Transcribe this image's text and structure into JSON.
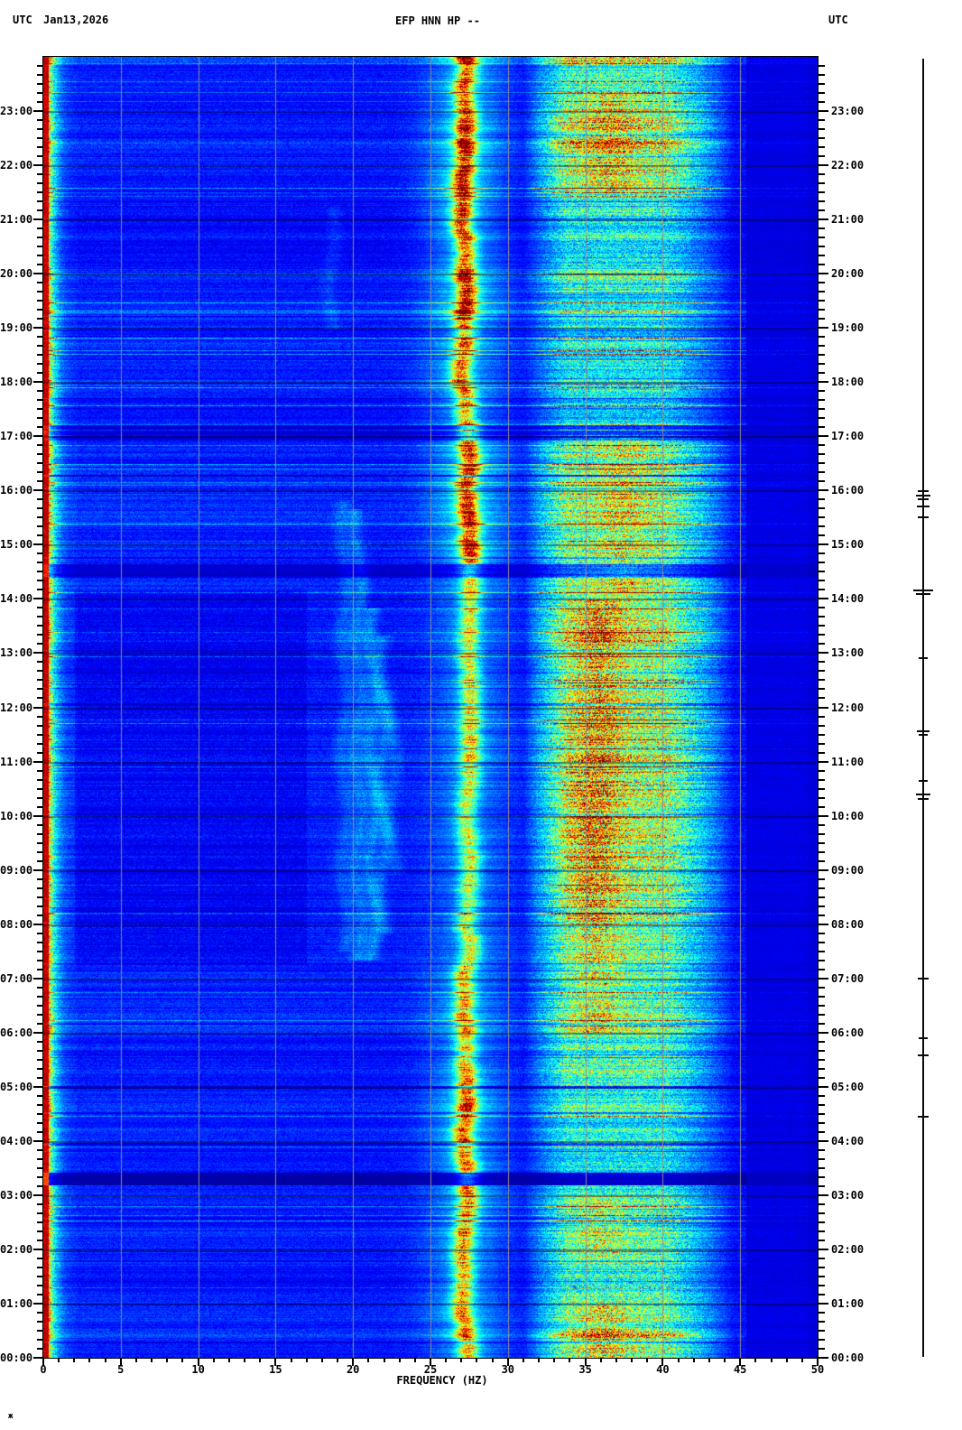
{
  "header": {
    "utc_left": "UTC",
    "date": "Jan13,2026",
    "title": "EFP HNN HP --",
    "utc_right": "UTC"
  },
  "footer_mark": "ж",
  "axes": {
    "freq": {
      "label": "FREQUENCY (HZ)",
      "min": 0,
      "max": 50,
      "major_step": 5,
      "minor_step": 1,
      "tick_labels": [
        "0",
        "5",
        "10",
        "15",
        "20",
        "25",
        "30",
        "35",
        "40",
        "45",
        "50"
      ]
    },
    "time": {
      "unit": "UTC",
      "minor_step_min": 10,
      "major_step_min": 60,
      "labels": [
        "23:00",
        "22:00",
        "21:00",
        "20:00",
        "19:00",
        "18:00",
        "17:00",
        "16:00",
        "15:00",
        "14:00",
        "13:00",
        "12:00",
        "11:00",
        "10:00",
        "09:00",
        "08:00",
        "07:00",
        "06:00",
        "05:00",
        "04:00",
        "03:00",
        "02:00",
        "01:00",
        "00:00"
      ]
    }
  },
  "chart_data": {
    "type": "heatmap",
    "subtype": "seismic-spectrogram",
    "title": "EFP HNN HP --",
    "xlabel": "FREQUENCY (HZ)",
    "x_range": [
      0,
      50
    ],
    "time_span_utc": [
      "24:00",
      "00:00"
    ],
    "colormap": "jet",
    "background_level": 0.155,
    "grid": {
      "x_lines_hz": [
        5,
        10,
        15,
        20,
        25,
        30,
        35,
        40,
        45
      ],
      "color": "#8e8e8e",
      "hour_line_color": "rgba(0,0,45,0.42)"
    },
    "left_edge_band": {
      "red_to_hz": 0.32,
      "fringe_amp": 0.5,
      "fringe_decay": 2.2
    },
    "band27": {
      "center_hz": 27.2,
      "wander_hz": 0.6,
      "core_sigma_hz": 0.45,
      "halo_sigma_hz": 1.7,
      "segments": [
        [
          0,
          60,
          0.6
        ],
        [
          60,
          290,
          0.7
        ],
        [
          290,
          420,
          0.52
        ],
        [
          420,
          560,
          0.62
        ],
        [
          560,
          780,
          0.4
        ],
        [
          780,
          1005,
          0.36
        ],
        [
          1005,
          1130,
          0.48
        ],
        [
          1130,
          1260,
          0.58
        ],
        [
          1260,
          1440,
          0.5
        ]
      ]
    },
    "band35": {
      "lo_hz": 30.5,
      "hi_hz": 45.2,
      "segments": [
        [
          0,
          40,
          0.3
        ],
        [
          40,
          150,
          0.4
        ],
        [
          150,
          260,
          0.3
        ],
        [
          260,
          420,
          0.22
        ],
        [
          420,
          600,
          0.33
        ],
        [
          600,
          960,
          0.38
        ],
        [
          960,
          1140,
          0.3
        ],
        [
          1140,
          1260,
          0.25
        ],
        [
          1260,
          1410,
          0.3
        ],
        [
          1410,
          1440,
          0.38
        ]
      ],
      "core_segments": [
        [
          40,
          150,
          0.2,
          36.6
        ],
        [
          420,
          600,
          0.16,
          37.4
        ],
        [
          600,
          780,
          0.28,
          35.9
        ],
        [
          780,
          960,
          0.32,
          35.6
        ],
        [
          960,
          1080,
          0.2,
          35.8
        ],
        [
          1260,
          1330,
          0.16,
          36.0
        ],
        [
          1380,
          1440,
          0.22,
          36.2
        ]
      ]
    },
    "mid_streaks": [
      {
        "hz": 19.4,
        "amp": 0.06,
        "from": 490,
        "to": 990
      },
      {
        "hz": 20.3,
        "amp": 0.085,
        "from": 500,
        "to": 1000
      },
      {
        "hz": 21.2,
        "amp": 0.095,
        "from": 610,
        "to": 1000
      },
      {
        "hz": 21.9,
        "amp": 0.075,
        "from": 640,
        "to": 970
      },
      {
        "hz": 22.5,
        "amp": 0.05,
        "from": 700,
        "to": 905
      },
      {
        "hz": 18.6,
        "amp": 0.045,
        "from": 165,
        "to": 300
      }
    ],
    "quiet_bands": [
      {
        "from_min": 175,
        "dur": 60,
        "gain": 0.84
      },
      {
        "from_min": 408,
        "dur": 17,
        "gain": 0.55
      },
      {
        "from_min": 463,
        "dur": 2,
        "gain": 0.45
      },
      {
        "from_min": 562,
        "dur": 14,
        "gain": 0.5
      },
      {
        "from_min": 716,
        "dur": 3,
        "gain": 0.55
      },
      {
        "from_min": 899,
        "dur": 2,
        "gain": 0.6
      },
      {
        "from_min": 957,
        "dur": 2,
        "gain": 0.65
      },
      {
        "from_min": 1139,
        "dur": 3,
        "gain": 0.5
      },
      {
        "from_min": 1168,
        "dur": 2,
        "gain": 0.65
      },
      {
        "from_min": 1202,
        "dur": 3,
        "gain": 0.55
      },
      {
        "from_min": 1235,
        "dur": 14,
        "gain": 0.28
      },
      {
        "from_min": 1290,
        "dur": 2,
        "gain": 0.7
      },
      {
        "from_min": 1422,
        "dur": 2,
        "gain": 0.6
      }
    ],
    "dark_right": {
      "from_hz": 45.35,
      "level": 0.075
    },
    "amplitude_trace": {
      "ticks": [
        {
          "utc": "16:00",
          "min": 480,
          "halfw": 6
        },
        {
          "utc": "15:55",
          "min": 485,
          "halfw": 8
        },
        {
          "utc": "15:51",
          "min": 489,
          "halfw": 6
        },
        {
          "utc": "15:43",
          "min": 497,
          "halfw": 7
        },
        {
          "utc": "15:31",
          "min": 509,
          "halfw": 6
        },
        {
          "utc": "14:10",
          "min": 590,
          "halfw": 11
        },
        {
          "utc": "14:06",
          "min": 594,
          "halfw": 8
        },
        {
          "utc": "12:55",
          "min": 665,
          "halfw": 5
        },
        {
          "utc": "11:35",
          "min": 745,
          "halfw": 7
        },
        {
          "utc": "11:31",
          "min": 749,
          "halfw": 5
        },
        {
          "utc": "10:40",
          "min": 800,
          "halfw": 5
        },
        {
          "utc": "10:25",
          "min": 815,
          "halfw": 8
        },
        {
          "utc": "10:20",
          "min": 820,
          "halfw": 6
        },
        {
          "utc": "07:01",
          "min": 1019,
          "halfw": 6
        },
        {
          "utc": "05:55",
          "min": 1085,
          "halfw": 5
        },
        {
          "utc": "05:36",
          "min": 1104,
          "halfw": 6
        },
        {
          "utc": "04:28",
          "min": 1172,
          "halfw": 6
        }
      ]
    }
  }
}
